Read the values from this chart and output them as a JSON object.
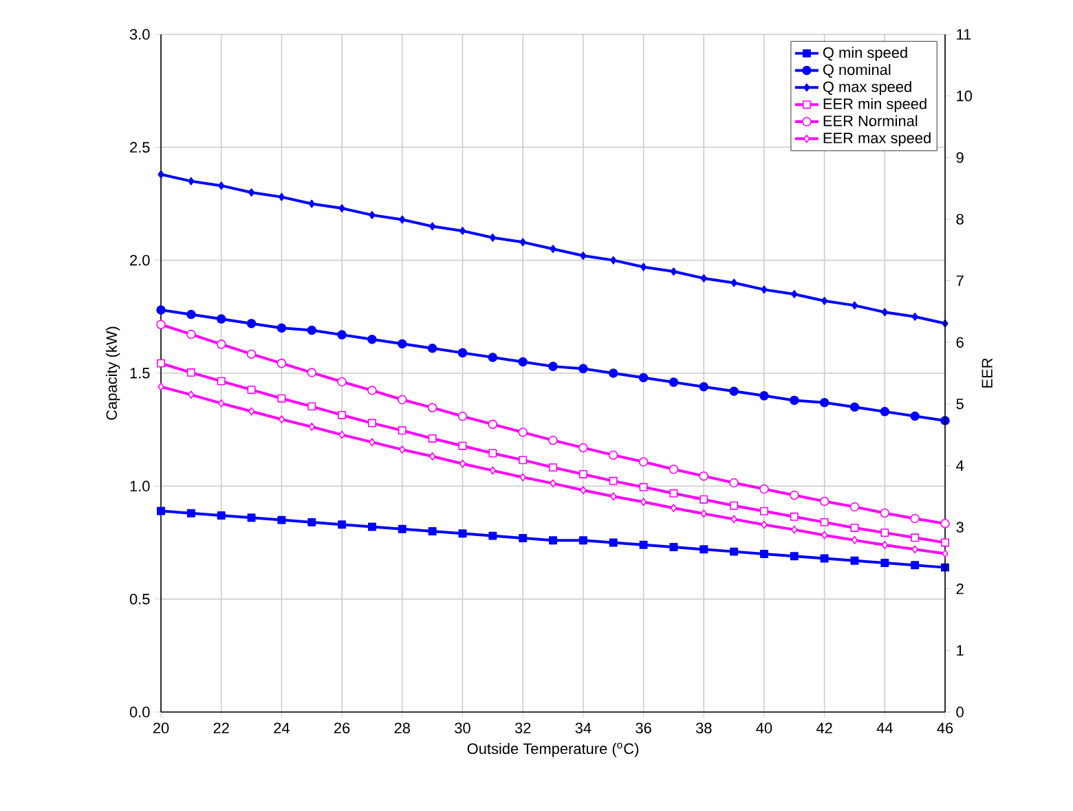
{
  "chart_data": {
    "type": "line",
    "xlabel": "Outside Temperature ($^{o}$C)",
    "ylabel": "Capacity (kW)",
    "y2label": "EER",
    "x": [
      20,
      21,
      22,
      23,
      24,
      25,
      26,
      27,
      28,
      29,
      30,
      31,
      32,
      33,
      34,
      35,
      36,
      37,
      38,
      39,
      40,
      41,
      42,
      43,
      44,
      45,
      46
    ],
    "xlim": [
      20,
      46
    ],
    "xticks": [
      20,
      22,
      24,
      26,
      28,
      30,
      32,
      34,
      36,
      38,
      40,
      42,
      44,
      46
    ],
    "ylim": [
      0,
      3
    ],
    "yticks": [
      {
        "value": 0,
        "label": "0.0"
      },
      {
        "value": 0.5,
        "label": "0.5"
      },
      {
        "value": 1,
        "label": "1.0"
      },
      {
        "value": 1.5,
        "label": "1.5"
      },
      {
        "value": 2,
        "label": "2.0"
      },
      {
        "value": 2.5,
        "label": "2.5"
      },
      {
        "value": 3,
        "label": "3.0"
      }
    ],
    "y2lim": [
      0,
      11
    ],
    "y2ticks": [
      0,
      1,
      2,
      3,
      4,
      5,
      6,
      7,
      8,
      9,
      10,
      11
    ],
    "grid": true,
    "legend": "top right",
    "series": [
      {
        "name": "Q min speed",
        "color": "#0000ff",
        "marker": "square",
        "values": [
          0.89,
          0.88,
          0.87,
          0.86,
          0.85,
          0.84,
          0.83,
          0.82,
          0.81,
          0.8,
          0.79,
          0.78,
          0.77,
          0.76,
          0.76,
          0.75,
          0.74,
          0.73,
          0.72,
          0.71,
          0.7,
          0.69,
          0.68,
          0.67,
          0.66,
          0.65,
          0.64
        ]
      },
      {
        "name": "Q nominal",
        "color": "#0000ff",
        "marker": "circle",
        "values": [
          1.78,
          1.76,
          1.74,
          1.72,
          1.7,
          1.69,
          1.67,
          1.65,
          1.63,
          1.61,
          1.59,
          1.57,
          1.55,
          1.53,
          1.52,
          1.5,
          1.48,
          1.46,
          1.44,
          1.42,
          1.4,
          1.38,
          1.37,
          1.35,
          1.33,
          1.31,
          1.29
        ]
      },
      {
        "name": "Q max speed",
        "color": "#0000ff",
        "marker": "diamond",
        "values": [
          2.38,
          2.35,
          2.33,
          2.3,
          2.28,
          2.25,
          2.23,
          2.2,
          2.18,
          2.15,
          2.13,
          2.1,
          2.08,
          2.05,
          2.02,
          2.0,
          1.97,
          1.95,
          1.92,
          1.9,
          1.87,
          1.85,
          1.82,
          1.8,
          1.77,
          1.75,
          1.72
        ]
      },
      {
        "name": "EER min speed",
        "color": "#ff00ff",
        "marker": "square",
        "axis": "y2",
        "values": [
          5.66,
          5.51,
          5.37,
          5.23,
          5.09,
          4.96,
          4.82,
          4.69,
          4.57,
          4.44,
          4.32,
          4.2,
          4.09,
          3.97,
          3.86,
          3.75,
          3.65,
          3.55,
          3.45,
          3.35,
          3.26,
          3.17,
          3.08,
          2.99,
          2.91,
          2.83,
          2.75
        ]
      },
      {
        "name": "EER Norminal",
        "color": "#ff00ff",
        "marker": "circle",
        "axis": "y2",
        "values": [
          6.29,
          6.13,
          5.97,
          5.81,
          5.66,
          5.51,
          5.36,
          5.22,
          5.07,
          4.94,
          4.8,
          4.67,
          4.54,
          4.41,
          4.29,
          4.17,
          4.06,
          3.94,
          3.83,
          3.72,
          3.62,
          3.52,
          3.42,
          3.33,
          3.23,
          3.14,
          3.06
        ]
      },
      {
        "name": "EER max speed",
        "color": "#ff00ff",
        "marker": "diamond",
        "axis": "y2",
        "values": [
          5.28,
          5.15,
          5.01,
          4.88,
          4.75,
          4.63,
          4.5,
          4.38,
          4.26,
          4.15,
          4.03,
          3.92,
          3.81,
          3.71,
          3.6,
          3.5,
          3.41,
          3.31,
          3.22,
          3.13,
          3.04,
          2.96,
          2.87,
          2.79,
          2.71,
          2.64,
          2.57
        ]
      }
    ]
  }
}
